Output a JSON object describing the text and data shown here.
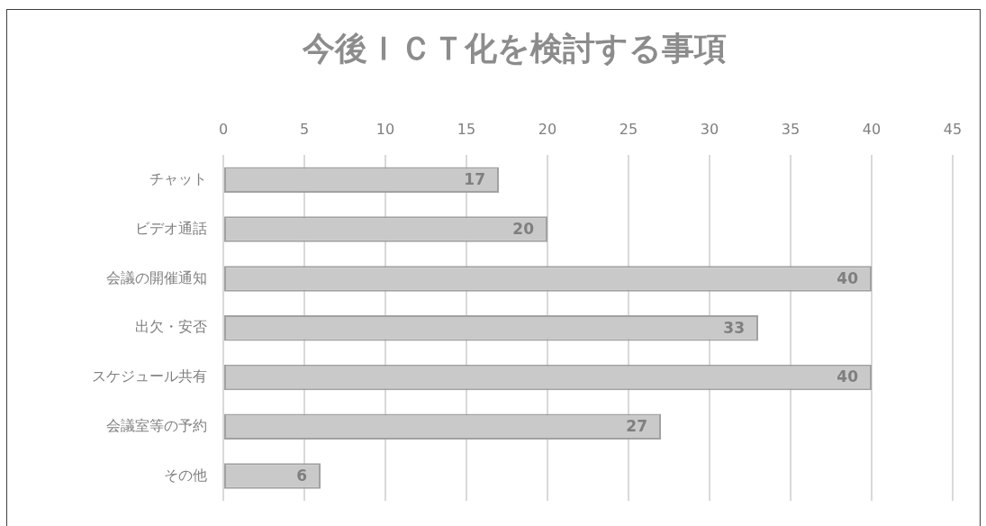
{
  "chart_data": {
    "type": "bar",
    "orientation": "horizontal",
    "title": "今後ＩＣＴ化を検討する事項",
    "categories": [
      "チャット",
      "ビデオ通話",
      "会議の開催通知",
      "出欠・安否",
      "スケジュール共有",
      "会議室等の予約",
      "その他"
    ],
    "values": [
      17,
      20,
      40,
      33,
      40,
      27,
      6
    ],
    "color": "#c9c9c9",
    "xlim": [
      0,
      45
    ],
    "xticks": [
      0,
      5,
      10,
      15,
      20,
      25,
      30,
      35,
      40,
      45
    ],
    "grid": "x",
    "data_labels": true
  }
}
